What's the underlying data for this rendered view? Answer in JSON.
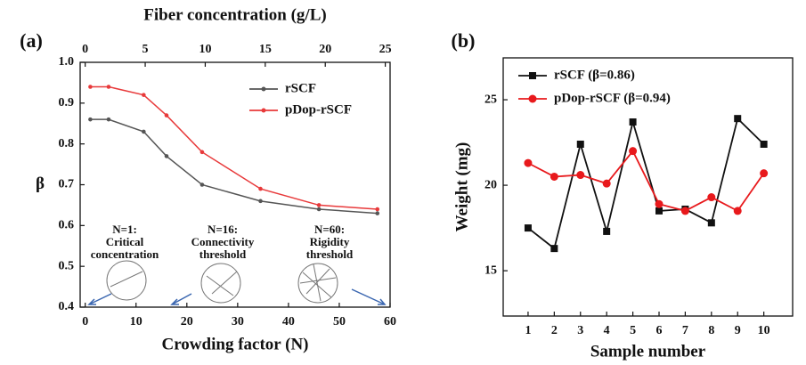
{
  "chart_data": [
    {
      "type": "line",
      "panel": "(a)",
      "x_label": "Crowding factor (N)",
      "x2_label": "Fiber concentration (g/L)",
      "y_label": "β",
      "x": [
        1,
        4.6,
        11.5,
        16,
        23,
        34.5,
        46,
        57.5
      ],
      "xlim": [
        -1,
        60
      ],
      "xticks": [
        0,
        10,
        20,
        30,
        40,
        50,
        60
      ],
      "x2lim": [
        -0.42,
        25.4
      ],
      "x2ticks": [
        0,
        5,
        10,
        15,
        20,
        25
      ],
      "ylim": [
        0.4,
        1
      ],
      "yticks": [
        0.4,
        0.5,
        0.6,
        0.7,
        0.8,
        0.9,
        {
          "value": 1,
          "label": "1.0"
        }
      ],
      "series": [
        {
          "name": "rSCF",
          "color": "#555555",
          "values": [
            0.86,
            0.86,
            0.83,
            0.77,
            0.7,
            0.66,
            0.64,
            0.63
          ]
        },
        {
          "name": "pDop-rSCF",
          "color": "#e8393a",
          "values": [
            0.94,
            0.94,
            0.92,
            0.87,
            0.78,
            0.69,
            0.65,
            0.64
          ]
        }
      ],
      "annotations": [
        [
          "N=1:",
          "Critical",
          "concentration"
        ],
        [
          "N=16:",
          "Connectivity",
          "threshold"
        ],
        [
          "N=60:",
          "Rigidity",
          "threshold"
        ]
      ],
      "legend": "upper right"
    },
    {
      "type": "line",
      "panel": "(b)",
      "x_label": "Sample number",
      "y_label": "Weight (mg)",
      "x": [
        1,
        2,
        3,
        4,
        5,
        6,
        7,
        8,
        9,
        10
      ],
      "xlim": [
        0.05,
        11.1
      ],
      "xticks": [
        1,
        2,
        3,
        4,
        5,
        6,
        7,
        8,
        9,
        10
      ],
      "ylim": [
        12.35,
        27.45
      ],
      "yticks": [
        15,
        20,
        25
      ],
      "series": [
        {
          "name": "rSCF (β=0.86)",
          "color": "#111111",
          "values": [
            17.5,
            16.3,
            22.4,
            17.3,
            23.7,
            18.5,
            18.6,
            17.8,
            23.9,
            22.4
          ]
        },
        {
          "name": "pDop-rSCF (β=0.94)",
          "color": "#e8191c",
          "values": [
            21.3,
            20.5,
            20.6,
            20.1,
            22.0,
            18.9,
            18.5,
            19.3,
            18.5,
            20.7
          ]
        }
      ],
      "legend": "upper left"
    }
  ]
}
